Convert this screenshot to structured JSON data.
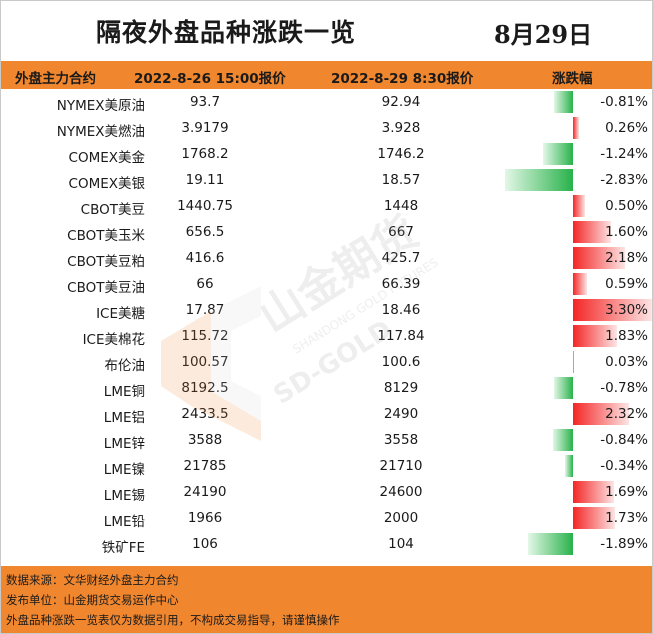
{
  "title": "隔夜外盘品种涨跌一览",
  "date": "8月29日",
  "header": {
    "col_name": "外盘主力合约",
    "col_prev": "2022-8-26 15:00报价",
    "col_curr": "2022-8-29 8:30报价",
    "col_change": "涨跌幅"
  },
  "colors": {
    "accent": "#f0862e",
    "up": "#f42626",
    "down": "#28b24a"
  },
  "rows": [
    {
      "name": "NYMEX美原油",
      "prev": "93.7",
      "curr": "92.94",
      "change": "-0.81%",
      "pct": -0.81
    },
    {
      "name": "NYMEX美燃油",
      "prev": "3.9179",
      "curr": "3.928",
      "change": "0.26%",
      "pct": 0.26
    },
    {
      "name": "COMEX美金",
      "prev": "1768.2",
      "curr": "1746.2",
      "change": "-1.24%",
      "pct": -1.24
    },
    {
      "name": "COMEX美银",
      "prev": "19.11",
      "curr": "18.57",
      "change": "-2.83%",
      "pct": -2.83
    },
    {
      "name": "CBOT美豆",
      "prev": "1440.75",
      "curr": "1448",
      "change": "0.50%",
      "pct": 0.5
    },
    {
      "name": "CBOT美玉米",
      "prev": "656.5",
      "curr": "667",
      "change": "1.60%",
      "pct": 1.6
    },
    {
      "name": "CBOT美豆粕",
      "prev": "416.6",
      "curr": "425.7",
      "change": "2.18%",
      "pct": 2.18
    },
    {
      "name": "CBOT美豆油",
      "prev": "66",
      "curr": "66.39",
      "change": "0.59%",
      "pct": 0.59
    },
    {
      "name": "ICE美糖",
      "prev": "17.87",
      "curr": "18.46",
      "change": "3.30%",
      "pct": 3.3
    },
    {
      "name": "ICE美棉花",
      "prev": "115.72",
      "curr": "117.84",
      "change": "1.83%",
      "pct": 1.83
    },
    {
      "name": "布伦油",
      "prev": "100.57",
      "curr": "100.6",
      "change": "0.03%",
      "pct": 0.03
    },
    {
      "name": "LME铜",
      "prev": "8192.5",
      "curr": "8129",
      "change": "-0.78%",
      "pct": -0.78
    },
    {
      "name": "LME铝",
      "prev": "2433.5",
      "curr": "2490",
      "change": "2.32%",
      "pct": 2.32
    },
    {
      "name": "LME锌",
      "prev": "3588",
      "curr": "3558",
      "change": "-0.84%",
      "pct": -0.84
    },
    {
      "name": "LME镍",
      "prev": "21785",
      "curr": "21710",
      "change": "-0.34%",
      "pct": -0.34
    },
    {
      "name": "LME锡",
      "prev": "24190",
      "curr": "24600",
      "change": "1.69%",
      "pct": 1.69
    },
    {
      "name": "LME铅",
      "prev": "1966",
      "curr": "2000",
      "change": "1.73%",
      "pct": 1.73
    },
    {
      "name": "铁矿FE",
      "prev": "106",
      "curr": "104",
      "change": "-1.89%",
      "pct": -1.89
    }
  ],
  "footer": {
    "source": "数据来源：文华财经外盘主力合约",
    "publisher": "发布单位：山金期货交易运作中心",
    "disclaimer": "外盘品种涨跌一览表仅为数据引用，不构成交易指导，请谨慎操作"
  },
  "watermark": {
    "text_cn": "山金期货",
    "text_en": "SHANDONG GOLD FUTURES",
    "text_logo": "SD-GOLD"
  }
}
